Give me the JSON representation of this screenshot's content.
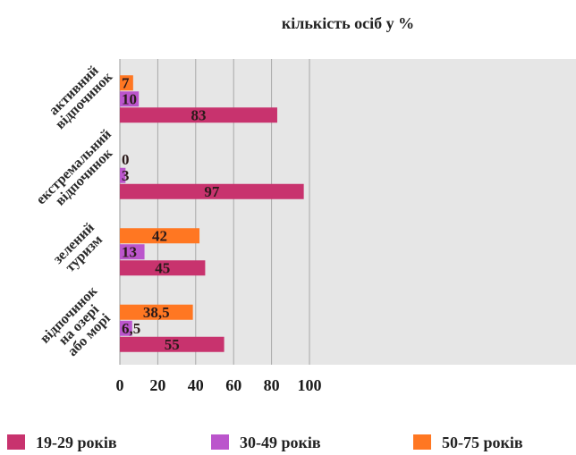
{
  "chart_data": {
    "type": "bar",
    "orientation": "horizontal",
    "title": "кількість осіб у %",
    "categories": [
      [
        "активний",
        "відпочинок"
      ],
      [
        "екстремальний",
        "відпочинок"
      ],
      [
        "зелений",
        "туризм"
      ],
      [
        "відпочинок",
        "на озері",
        "або морі"
      ]
    ],
    "series": [
      {
        "name": "19-29 років",
        "color": "#c8336e",
        "values": [
          83,
          97,
          45,
          55
        ],
        "labels": [
          "83",
          "97",
          "45",
          "55"
        ]
      },
      {
        "name": "30-49 років",
        "color": "#bb55cc",
        "values": [
          10,
          3,
          13,
          6.5
        ],
        "labels": [
          "10",
          "3",
          "13",
          "6,5"
        ]
      },
      {
        "name": "50-75 років",
        "color": "#ff7722",
        "values": [
          7,
          0,
          42,
          38.5
        ],
        "labels": [
          "7",
          "0",
          "42",
          "38,5"
        ]
      }
    ],
    "xlim": [
      0,
      120
    ],
    "xticks": [
      0,
      20,
      40,
      60,
      80,
      100
    ],
    "grid": true,
    "legend_position": "bottom",
    "plot_background": "#e6e6e6"
  }
}
